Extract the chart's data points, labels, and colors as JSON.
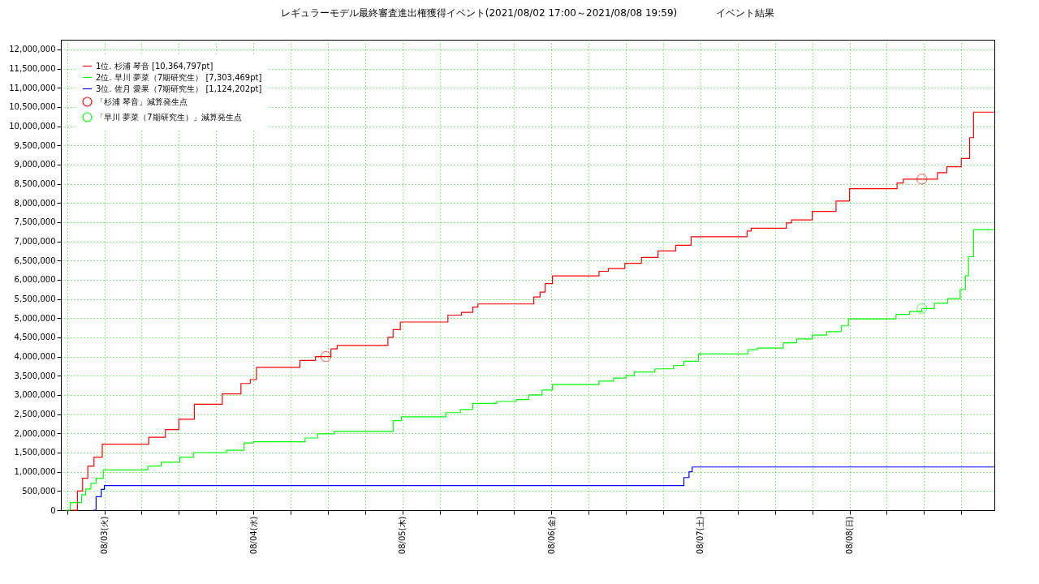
{
  "chart_data": {
    "type": "step",
    "title": "レギュラーモデル最終審査進出権獲得イベント(2021/08/02 17:00～2021/08/08 19:59)",
    "annotations": [
      "イベント結果"
    ],
    "xlim": [
      "2021-08-02T17:00",
      "2021-08-08T23:20"
    ],
    "xticks": [
      {
        "value": "2021-08-02T18:00",
        "label": null
      },
      {
        "value": "2021-08-03T00:00",
        "label": "08/03(火)"
      },
      {
        "value": "2021-08-03T06:00",
        "label": null
      },
      {
        "value": "2021-08-03T12:00",
        "label": null
      },
      {
        "value": "2021-08-03T18:00",
        "label": null
      },
      {
        "value": "2021-08-04T00:00",
        "label": "08/04(水)"
      },
      {
        "value": "2021-08-04T06:00",
        "label": null
      },
      {
        "value": "2021-08-04T12:00",
        "label": null
      },
      {
        "value": "2021-08-04T18:00",
        "label": null
      },
      {
        "value": "2021-08-05T00:00",
        "label": "08/05(木)"
      },
      {
        "value": "2021-08-05T06:00",
        "label": null
      },
      {
        "value": "2021-08-05T12:00",
        "label": null
      },
      {
        "value": "2021-08-05T18:00",
        "label": null
      },
      {
        "value": "2021-08-06T00:00",
        "label": "08/06(金)"
      },
      {
        "value": "2021-08-06T06:00",
        "label": null
      },
      {
        "value": "2021-08-06T12:00",
        "label": null
      },
      {
        "value": "2021-08-06T18:00",
        "label": null
      },
      {
        "value": "2021-08-07T00:00",
        "label": "08/07(土)"
      },
      {
        "value": "2021-08-07T06:00",
        "label": null
      },
      {
        "value": "2021-08-07T12:00",
        "label": null
      },
      {
        "value": "2021-08-07T18:00",
        "label": null
      },
      {
        "value": "2021-08-08T00:00",
        "label": "08/08(日)"
      },
      {
        "value": "2021-08-08T06:00",
        "label": null
      },
      {
        "value": "2021-08-08T12:00",
        "label": null
      },
      {
        "value": "2021-08-08T18:00",
        "label": null
      }
    ],
    "ylim": [
      0,
      12250000
    ],
    "yticks": [
      {
        "value": 0,
        "label": "0"
      },
      {
        "value": 500000,
        "label": "500,000"
      },
      {
        "value": 1000000,
        "label": "1,000,000"
      },
      {
        "value": 1500000,
        "label": "1,500,000"
      },
      {
        "value": 2000000,
        "label": "2,000,000"
      },
      {
        "value": 2500000,
        "label": "2,500,000"
      },
      {
        "value": 3000000,
        "label": "3,000,000"
      },
      {
        "value": 3500000,
        "label": "3,500,000"
      },
      {
        "value": 4000000,
        "label": "4,000,000"
      },
      {
        "value": 4500000,
        "label": "4,500,000"
      },
      {
        "value": 5000000,
        "label": "5,000,000"
      },
      {
        "value": 5500000,
        "label": "5,500,000"
      },
      {
        "value": 6000000,
        "label": "6,000,000"
      },
      {
        "value": 6500000,
        "label": "6,500,000"
      },
      {
        "value": 7000000,
        "label": "7,000,000"
      },
      {
        "value": 7500000,
        "label": "7,500,000"
      },
      {
        "value": 8000000,
        "label": "8,000,000"
      },
      {
        "value": 8500000,
        "label": "8,500,000"
      },
      {
        "value": 9000000,
        "label": "9,000,000"
      },
      {
        "value": 9500000,
        "label": "9,500,000"
      },
      {
        "value": 10000000,
        "label": "10,000,000"
      },
      {
        "value": 10500000,
        "label": "10,500,000"
      },
      {
        "value": 11000000,
        "label": "11,000,000"
      },
      {
        "value": 11500000,
        "label": "11,500,000"
      },
      {
        "value": 12000000,
        "label": "12,000,000"
      }
    ],
    "grid": true,
    "legend": "top left",
    "series": [
      {
        "name": "1位. 杉浦 琴音 [10,364,797pt]",
        "color": "#ff0000",
        "x": [
          "2021-08-02T18:30",
          "2021-08-02T19:40",
          "2021-08-02T20:30",
          "2021-08-02T21:20",
          "2021-08-02T22:20",
          "2021-08-02T23:40",
          "2021-08-03T07:10",
          "2021-08-03T09:50",
          "2021-08-03T12:00",
          "2021-08-03T14:30",
          "2021-08-03T19:00",
          "2021-08-03T22:00",
          "2021-08-03T23:30",
          "2021-08-04T00:30",
          "2021-08-04T07:30",
          "2021-08-04T10:00",
          "2021-08-04T12:30",
          "2021-08-04T13:30",
          "2021-08-04T21:40",
          "2021-08-04T22:30",
          "2021-08-04T23:40",
          "2021-08-05T07:20",
          "2021-08-05T09:30",
          "2021-08-05T11:20",
          "2021-08-05T12:10",
          "2021-08-05T21:10",
          "2021-08-05T22:10",
          "2021-08-05T23:00",
          "2021-08-06T00:10",
          "2021-08-06T07:40",
          "2021-08-06T09:10",
          "2021-08-06T11:50",
          "2021-08-06T14:30",
          "2021-08-06T17:10",
          "2021-08-06T20:00",
          "2021-08-06T22:30",
          "2021-08-07T07:30",
          "2021-08-07T08:10",
          "2021-08-07T13:50",
          "2021-08-07T14:40",
          "2021-08-07T18:00",
          "2021-08-07T21:50",
          "2021-08-08T00:00",
          "2021-08-08T07:40",
          "2021-08-08T08:40",
          "2021-08-08T14:10",
          "2021-08-08T15:40",
          "2021-08-08T18:00",
          "2021-08-08T19:20",
          "2021-08-08T19:59",
          "2021-08-08T23:20"
        ],
        "values": [
          0,
          500000,
          830000,
          1150000,
          1380000,
          1720000,
          1900000,
          2100000,
          2370000,
          2760000,
          3030000,
          3300000,
          3400000,
          3720000,
          3900000,
          4000000,
          4200000,
          4290000,
          4500000,
          4700000,
          4900000,
          5080000,
          5150000,
          5290000,
          5370000,
          5550000,
          5680000,
          5900000,
          6100000,
          6220000,
          6290000,
          6430000,
          6580000,
          6750000,
          6900000,
          7120000,
          7270000,
          7340000,
          7480000,
          7560000,
          7780000,
          8050000,
          8370000,
          8520000,
          8620000,
          8790000,
          8940000,
          9160000,
          9700000,
          10364797,
          10364797
        ]
      },
      {
        "name": "2位. 早川 夢菜（7期研究生） [7,303,469pt]",
        "color": "#00ff00",
        "x": [
          "2021-08-02T17:50",
          "2021-08-02T18:30",
          "2021-08-02T20:20",
          "2021-08-02T21:00",
          "2021-08-02T21:50",
          "2021-08-02T22:40",
          "2021-08-02T23:50",
          "2021-08-03T07:00",
          "2021-08-03T09:10",
          "2021-08-03T12:10",
          "2021-08-03T14:20",
          "2021-08-03T19:40",
          "2021-08-03T22:30",
          "2021-08-04T00:00",
          "2021-08-04T08:20",
          "2021-08-04T10:20",
          "2021-08-04T13:00",
          "2021-08-04T22:30",
          "2021-08-04T23:50",
          "2021-08-05T07:00",
          "2021-08-05T09:20",
          "2021-08-05T11:20",
          "2021-08-05T15:10",
          "2021-08-05T18:20",
          "2021-08-05T20:20",
          "2021-08-05T22:30",
          "2021-08-06T00:10",
          "2021-08-06T07:40",
          "2021-08-06T10:00",
          "2021-08-06T12:00",
          "2021-08-06T13:20",
          "2021-08-06T16:40",
          "2021-08-06T19:40",
          "2021-08-06T21:20",
          "2021-08-06T23:40",
          "2021-08-07T07:40",
          "2021-08-07T09:10",
          "2021-08-07T13:20",
          "2021-08-07T15:30",
          "2021-08-07T18:00",
          "2021-08-07T20:20",
          "2021-08-07T22:40",
          "2021-08-07T23:50",
          "2021-08-08T07:30",
          "2021-08-08T09:40",
          "2021-08-08T11:40",
          "2021-08-08T13:40",
          "2021-08-08T15:50",
          "2021-08-08T17:50",
          "2021-08-08T18:40",
          "2021-08-08T19:10",
          "2021-08-08T19:59",
          "2021-08-08T23:20"
        ],
        "values": [
          0,
          200000,
          400000,
          550000,
          700000,
          830000,
          1050000,
          1150000,
          1250000,
          1380000,
          1500000,
          1560000,
          1750000,
          1780000,
          1880000,
          1990000,
          2050000,
          2330000,
          2430000,
          2540000,
          2620000,
          2780000,
          2830000,
          2880000,
          3000000,
          3130000,
          3270000,
          3360000,
          3440000,
          3500000,
          3600000,
          3680000,
          3770000,
          3880000,
          4070000,
          4180000,
          4220000,
          4360000,
          4460000,
          4560000,
          4650000,
          4800000,
          4980000,
          5100000,
          5170000,
          5250000,
          5390000,
          5510000,
          5750000,
          6100000,
          6600000,
          7303469,
          7303469
        ]
      },
      {
        "name": "3位. 佐月 愛果（7期研究生） [1,124,202pt]",
        "color": "#0000ff",
        "x": [
          "2021-08-02T22:10",
          "2021-08-02T22:40",
          "2021-08-02T23:30",
          "2021-08-03T00:00",
          "2021-08-06T20:40",
          "2021-08-06T21:20",
          "2021-08-06T22:10",
          "2021-08-06T22:40",
          "2021-08-08T23:20"
        ],
        "values": [
          0,
          350000,
          540000,
          640000,
          640000,
          850000,
          1000000,
          1124202,
          1124202
        ]
      },
      {
        "name": "「杉浦 琴音」減算発生点",
        "type": "scatter",
        "marker": "circle",
        "color": "#ff0000",
        "x": [
          "2021-08-04T11:40",
          "2021-08-08T11:40"
        ],
        "values": [
          4000000,
          8620000
        ]
      },
      {
        "name": "「早川 夢菜（7期研究生）」減算発生点",
        "type": "scatter",
        "marker": "circle",
        "color": "#00ff00",
        "x": [
          "2021-08-08T11:40"
        ],
        "values": [
          5250000
        ]
      }
    ]
  }
}
